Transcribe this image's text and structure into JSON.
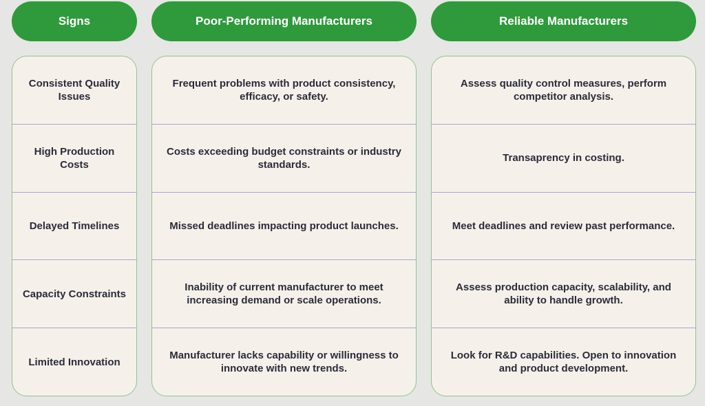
{
  "headers": {
    "signs": "Signs",
    "poor": "Poor-Performing Manufacturers",
    "reliable": "Reliable Manufacturers"
  },
  "rows": [
    {
      "sign": "Consistent Quality Issues",
      "poor": "Frequent problems with product consistency, efficacy, or safety.",
      "reliable": "Assess quality control measures, perform competitor analysis."
    },
    {
      "sign": "High Production Costs",
      "poor": "Costs exceeding budget constraints or industry standards.",
      "reliable": "Transaprency in costing."
    },
    {
      "sign": "Delayed Timelines",
      "poor": "Missed deadlines impacting product launches.",
      "reliable": "Meet deadlines and review past performance."
    },
    {
      "sign": "Capacity Constraints",
      "poor": "Inability of current manufacturer to meet increasing demand or scale operations.",
      "reliable": "Assess production capacity, scalability, and ability to handle growth."
    },
    {
      "sign": "Limited Innovation",
      "poor": "Manufacturer lacks capability or willingness to innovate with new trends.",
      "reliable": "Look for R&D capabilities. Open to innovation and product development."
    }
  ],
  "colors": {
    "header_green": "#2f9a3b",
    "panel_background": "#f5f1ea",
    "panel_border": "#8fc48f",
    "row_divider": "#a8a0d8",
    "text": "#2b2b3a"
  }
}
